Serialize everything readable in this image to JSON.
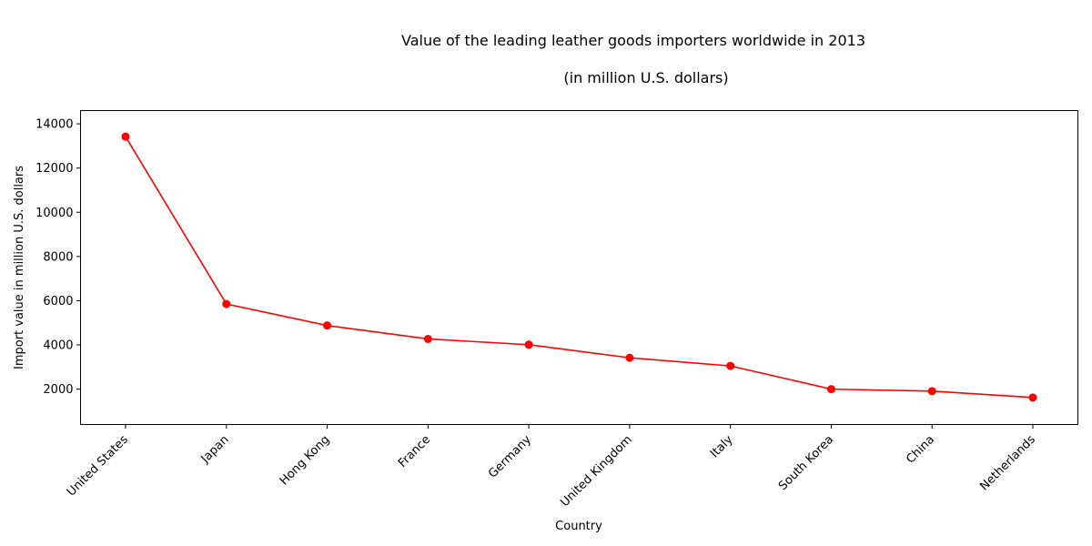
{
  "chart_data": {
    "type": "line",
    "title": "Value of the leading leather goods importers worldwide in 2013",
    "subtitle": "(in million U.S. dollars)",
    "xlabel": "Country",
    "ylabel": "Import value in million U.S. dollars",
    "categories": [
      "United States",
      "Japan",
      "Hong Kong",
      "France",
      "Germany",
      "United Kingdom",
      "Italy",
      "South Korea",
      "China",
      "Netherlands"
    ],
    "series": [
      {
        "values": [
          13420,
          5850,
          4880,
          4270,
          4010,
          3420,
          3050,
          2000,
          1910,
          1620
        ],
        "color": "#ff0000",
        "marker": "circle"
      }
    ],
    "yticks": [
      2000,
      4000,
      6000,
      8000,
      10000,
      12000,
      14000
    ],
    "ylim": [
      400,
      14600
    ],
    "grid": false,
    "legend": "none"
  }
}
